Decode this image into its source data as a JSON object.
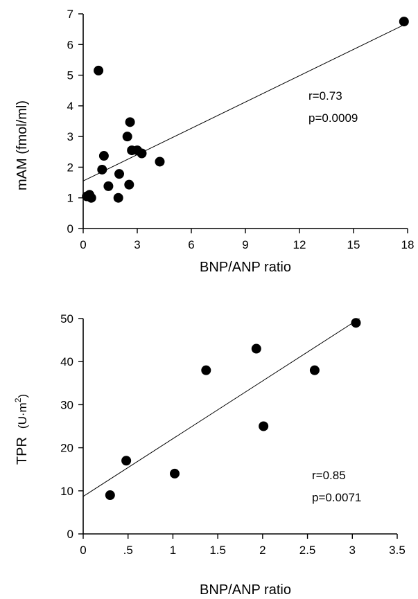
{
  "chart_data": [
    {
      "type": "scatter",
      "xlabel": "BNP/ANP ratio",
      "ylabel": "mAM (fmol/ml)",
      "xlim": [
        0,
        18
      ],
      "ylim": [
        0,
        7
      ],
      "xticks": [
        0,
        3,
        6,
        9,
        12,
        15,
        18
      ],
      "xtick_labels": [
        "0",
        "3",
        "6",
        "9",
        "12",
        "15",
        "18"
      ],
      "yticks": [
        0,
        1,
        2,
        3,
        4,
        5,
        6,
        7
      ],
      "ytick_labels": [
        "0",
        "1",
        "2",
        "3",
        "4",
        "5",
        "6",
        "7"
      ],
      "annotations": [
        "r=0.73",
        "p=0.0009"
      ],
      "regression": {
        "x": [
          0,
          18
        ],
        "y": [
          1.55,
          6.7
        ]
      },
      "series": [
        {
          "x": [
            0.2,
            0.35,
            0.45,
            0.85,
            1.05,
            1.15,
            1.4,
            1.95,
            2.0,
            2.45,
            2.55,
            2.6,
            2.7,
            3.0,
            3.25,
            4.25,
            17.8
          ],
          "y": [
            1.05,
            1.1,
            1.0,
            5.15,
            1.92,
            2.37,
            1.38,
            1.0,
            1.78,
            3.0,
            1.43,
            3.47,
            2.55,
            2.55,
            2.45,
            2.18,
            6.75
          ]
        }
      ]
    },
    {
      "type": "scatter",
      "xlabel": "BNP/ANP ratio",
      "ylabel_main": "TPR",
      "ylabel_unit": "(U·m",
      "ylabel_sup": "2",
      "ylabel_close": ")",
      "xlim": [
        0,
        3.5
      ],
      "ylim": [
        0,
        50
      ],
      "xticks": [
        0,
        0.5,
        1,
        1.5,
        2,
        2.5,
        3,
        3.5
      ],
      "xtick_labels": [
        "0",
        ".5",
        "1",
        "1.5",
        "2",
        "2.5",
        "3",
        "3.5"
      ],
      "yticks": [
        0,
        10,
        20,
        30,
        40,
        50
      ],
      "ytick_labels": [
        "0",
        "10",
        "20",
        "30",
        "40",
        "50"
      ],
      "annotations": [
        "r=0.85",
        "p=0.0071"
      ],
      "regression": {
        "x": [
          0,
          3.08
        ],
        "y": [
          8.7,
          50
        ]
      },
      "series": [
        {
          "x": [
            0.3,
            0.48,
            1.02,
            1.37,
            1.93,
            2.01,
            2.58,
            3.04
          ],
          "y": [
            9,
            17,
            14,
            38,
            43,
            25,
            38,
            49
          ]
        }
      ]
    }
  ]
}
